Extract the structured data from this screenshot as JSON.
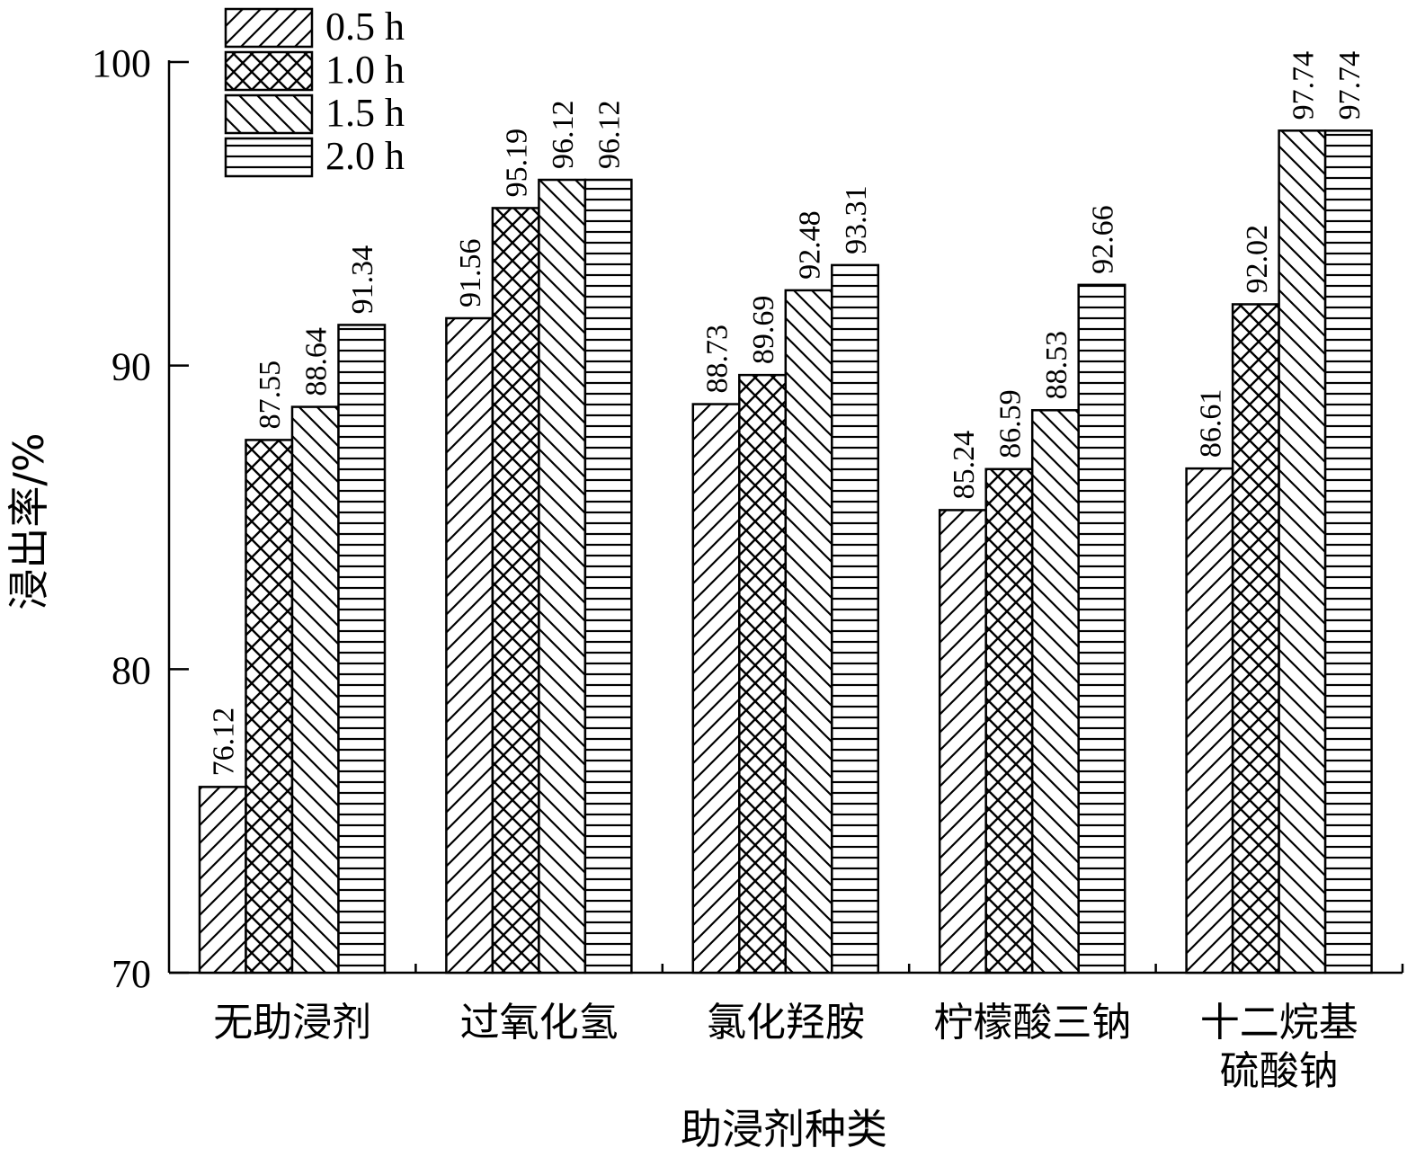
{
  "chart_data": {
    "type": "bar",
    "xlabel": "助浸剂种类",
    "ylabel": "浸出率/%",
    "ylim": [
      70,
      100
    ],
    "yticks": [
      70,
      80,
      90,
      100
    ],
    "grid": false,
    "legend_position": "top-left",
    "categories": [
      [
        "无助浸剂"
      ],
      [
        "过氧化氢"
      ],
      [
        "氯化羟胺"
      ],
      [
        "柠檬酸三钠"
      ],
      [
        "十二烷基",
        "硫酸钠"
      ]
    ],
    "series": [
      {
        "name": "0.5 h",
        "pattern": "diag-forward",
        "values": [
          76.12,
          91.56,
          88.73,
          85.24,
          86.61
        ]
      },
      {
        "name": "1.0 h",
        "pattern": "crosshatch",
        "values": [
          87.55,
          95.19,
          89.69,
          86.59,
          92.02
        ]
      },
      {
        "name": "1.5 h",
        "pattern": "diag-back",
        "values": [
          88.64,
          96.12,
          92.48,
          88.53,
          97.74
        ]
      },
      {
        "name": "2.0 h",
        "pattern": "horizontal",
        "values": [
          91.34,
          96.12,
          93.31,
          92.66,
          97.74
        ]
      }
    ],
    "colors": {
      "stroke": "#000000",
      "background": "#ffffff"
    }
  }
}
